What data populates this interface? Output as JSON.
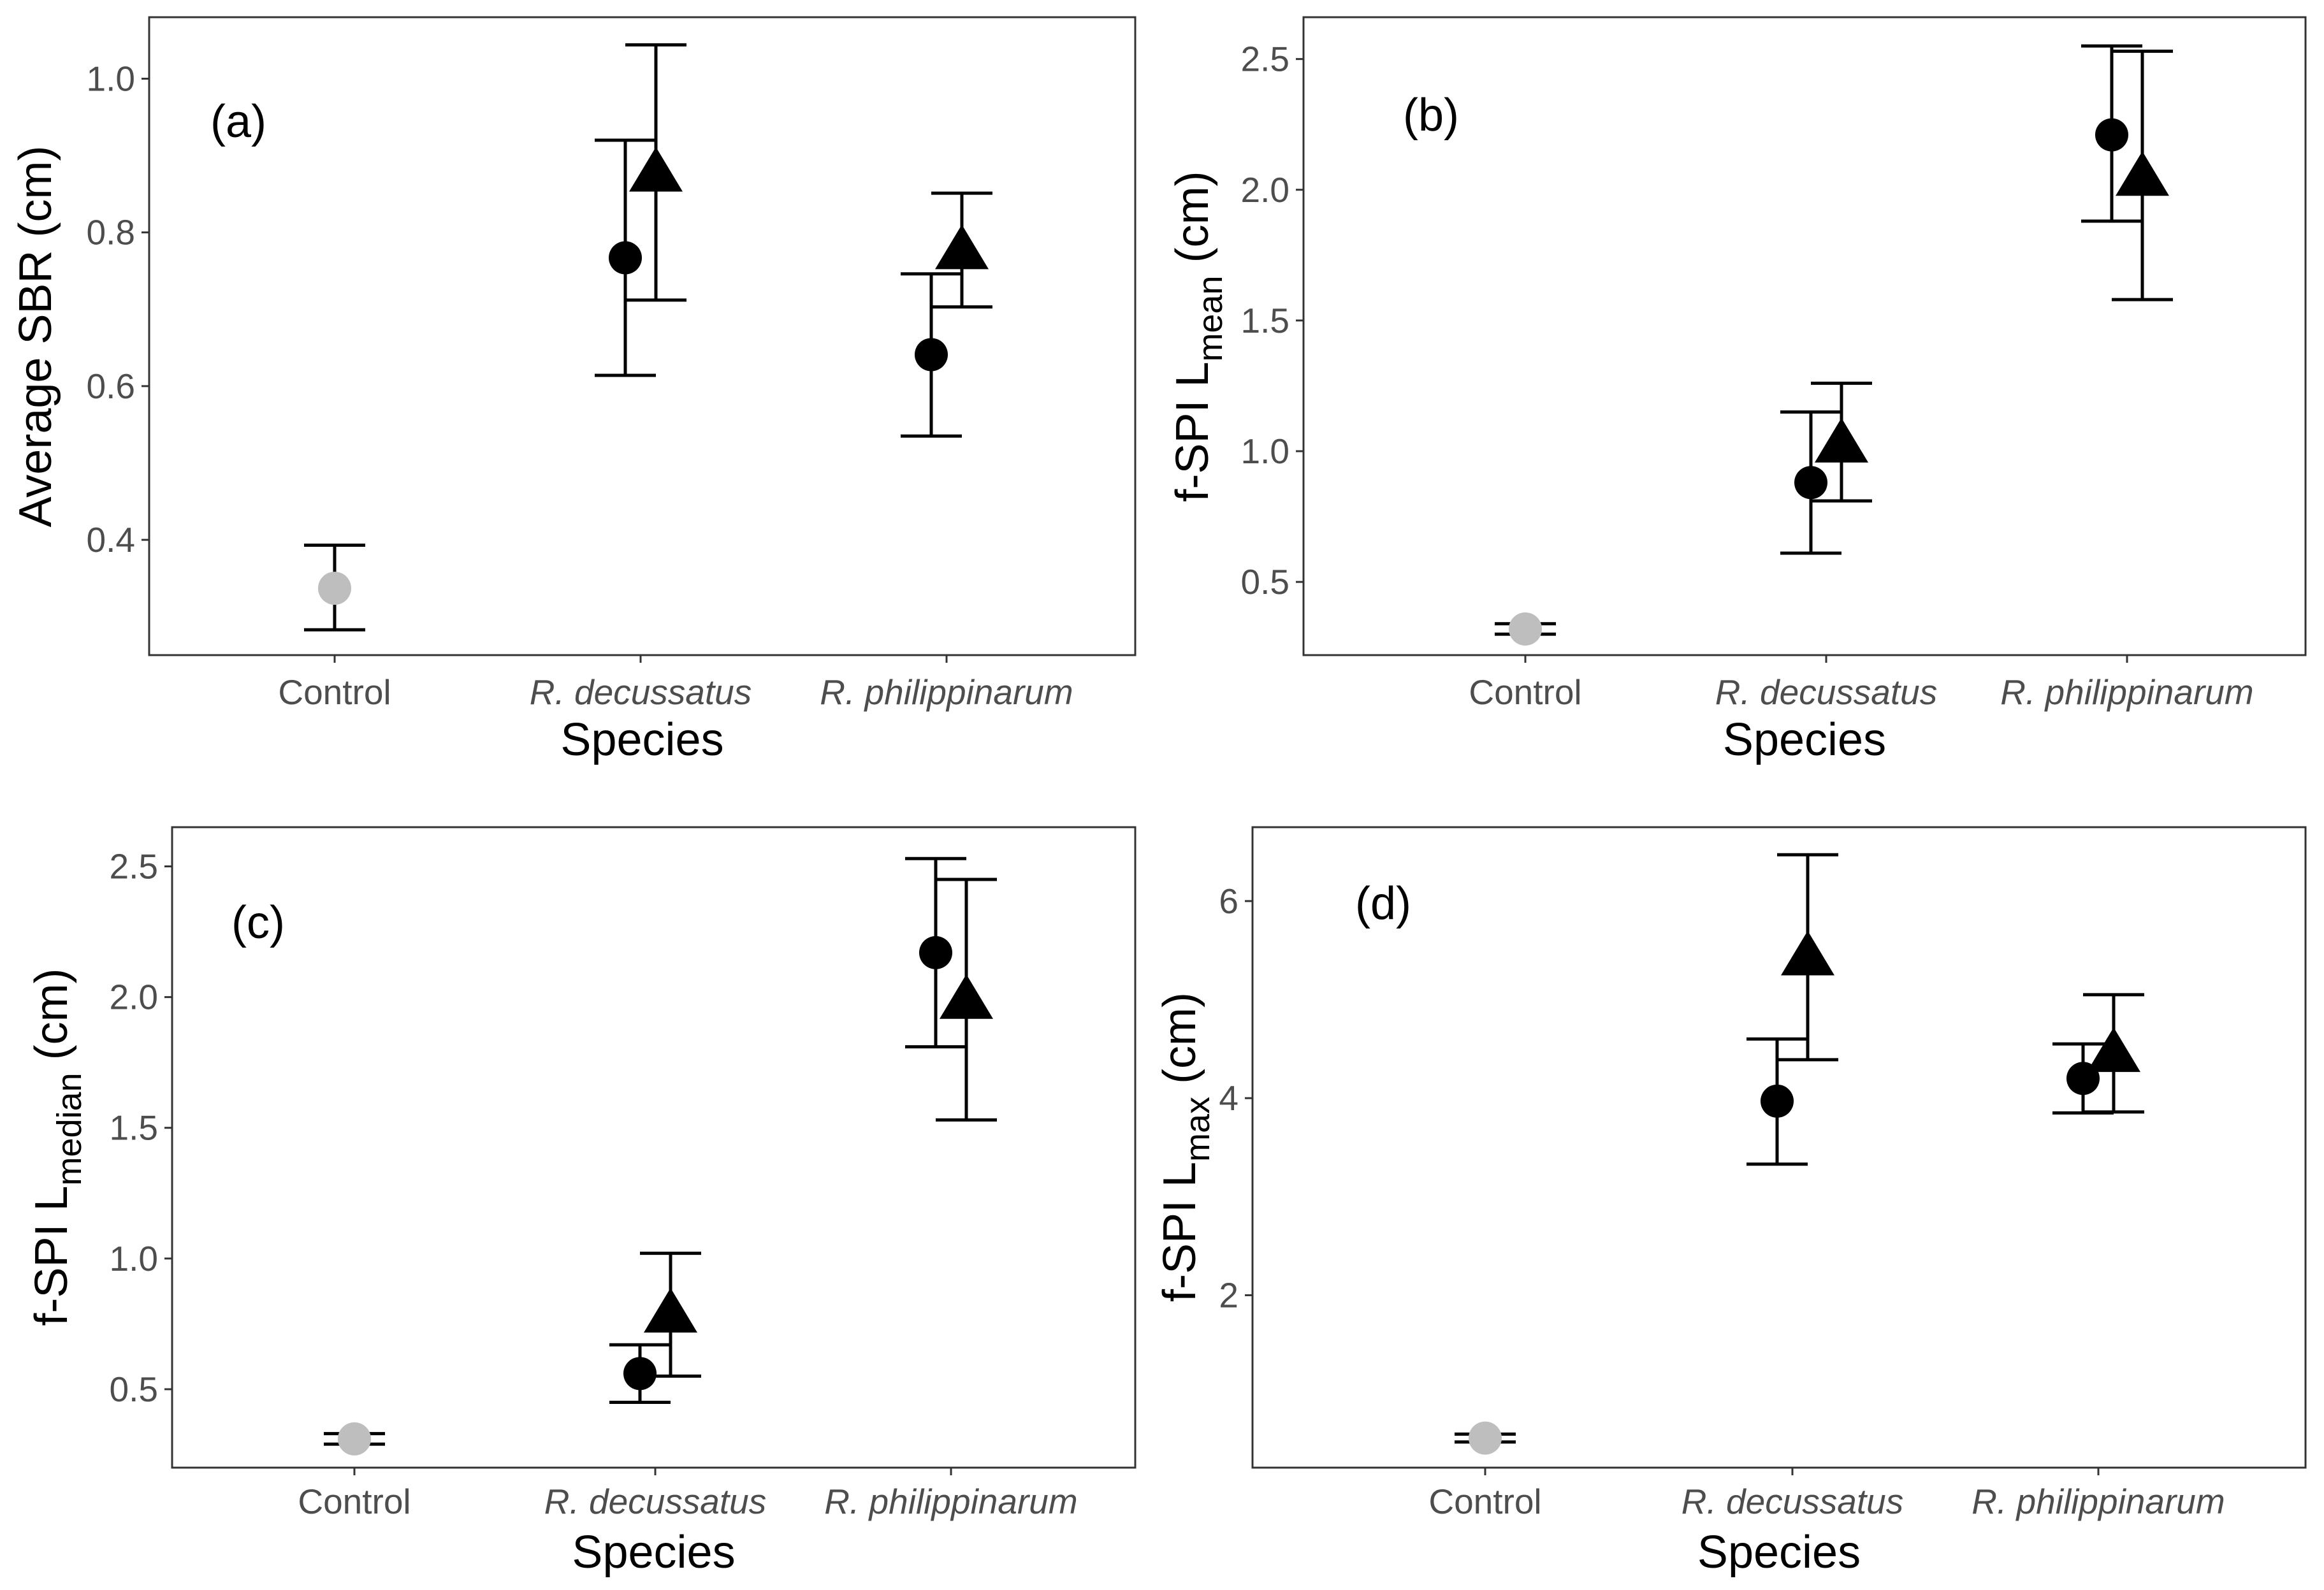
{
  "chart_data": [
    {
      "type": "scatter",
      "panel_label": "(a)",
      "ylabel": "Average SBR (cm)",
      "ylabel_sub": "",
      "xlabel": "Species",
      "categories": [
        "Control",
        "R. decussatus",
        "R. philippinarum"
      ],
      "category_italic": [
        false,
        true,
        true
      ],
      "ylim": [
        0.25,
        1.08
      ],
      "yticks": [
        0.4,
        0.6,
        0.8,
        1.0
      ],
      "ytick_labels": [
        "0.4",
        "0.6",
        "0.8",
        "1.0"
      ],
      "series": [
        {
          "name": "control",
          "marker": "circle",
          "color": "#bebebe",
          "points": [
            {
              "cat": 0,
              "y": 0.337,
              "lo": 0.283,
              "hi": 0.393
            }
          ]
        },
        {
          "name": "circle",
          "marker": "circle",
          "color": "#000000",
          "points": [
            {
              "cat": 1,
              "y": 0.767,
              "lo": 0.614,
              "hi": 0.92
            },
            {
              "cat": 2,
              "y": 0.641,
              "lo": 0.535,
              "hi": 0.746
            }
          ]
        },
        {
          "name": "triangle",
          "marker": "triangle",
          "color": "#000000",
          "points": [
            {
              "cat": 1,
              "y": 0.878,
              "lo": 0.712,
              "hi": 1.044
            },
            {
              "cat": 2,
              "y": 0.777,
              "lo": 0.703,
              "hi": 0.851
            }
          ]
        }
      ]
    },
    {
      "type": "scatter",
      "panel_label": "(b)",
      "ylabel": "f-SPI L",
      "ylabel_sub": "mean",
      "ylabel_suffix": " (cm)",
      "xlabel": "Species",
      "categories": [
        "Control",
        "R. decussatus",
        "R. philippinarum"
      ],
      "category_italic": [
        false,
        true,
        true
      ],
      "ylim": [
        0.22,
        2.66
      ],
      "yticks": [
        0.5,
        1.0,
        1.5,
        2.0,
        2.5
      ],
      "ytick_labels": [
        "0.5",
        "1.0",
        "1.5",
        "2.0",
        "2.5"
      ],
      "series": [
        {
          "name": "control",
          "marker": "circle",
          "color": "#bebebe",
          "points": [
            {
              "cat": 0,
              "y": 0.32,
              "lo": 0.3,
              "hi": 0.34
            }
          ]
        },
        {
          "name": "circle",
          "marker": "circle",
          "color": "#000000",
          "points": [
            {
              "cat": 1,
              "y": 0.88,
              "lo": 0.61,
              "hi": 1.15
            },
            {
              "cat": 2,
              "y": 2.21,
              "lo": 1.88,
              "hi": 2.55
            }
          ]
        },
        {
          "name": "triangle",
          "marker": "triangle",
          "color": "#000000",
          "points": [
            {
              "cat": 1,
              "y": 1.03,
              "lo": 0.81,
              "hi": 1.26
            },
            {
              "cat": 2,
              "y": 2.05,
              "lo": 1.58,
              "hi": 2.53
            }
          ]
        }
      ]
    },
    {
      "type": "scatter",
      "panel_label": "(c)",
      "ylabel": "f-SPI L",
      "ylabel_sub": "median",
      "ylabel_suffix": " (cm)",
      "xlabel": "Species",
      "categories": [
        "Control",
        "R. decussatus",
        "R. philippinarum"
      ],
      "category_italic": [
        false,
        true,
        true
      ],
      "ylim": [
        0.2,
        2.65
      ],
      "yticks": [
        0.5,
        1.0,
        1.5,
        2.0,
        2.5
      ],
      "ytick_labels": [
        "0.5",
        "1.0",
        "1.5",
        "2.0",
        "2.5"
      ],
      "series": [
        {
          "name": "control",
          "marker": "circle",
          "color": "#bebebe",
          "points": [
            {
              "cat": 0,
              "y": 0.31,
              "lo": 0.29,
              "hi": 0.33
            }
          ]
        },
        {
          "name": "circle",
          "marker": "circle",
          "color": "#000000",
          "points": [
            {
              "cat": 1,
              "y": 0.56,
              "lo": 0.45,
              "hi": 0.67
            },
            {
              "cat": 2,
              "y": 2.17,
              "lo": 1.81,
              "hi": 2.53
            }
          ]
        },
        {
          "name": "triangle",
          "marker": "triangle",
          "color": "#000000",
          "points": [
            {
              "cat": 1,
              "y": 0.79,
              "lo": 0.55,
              "hi": 1.02
            },
            {
              "cat": 2,
              "y": 1.99,
              "lo": 1.53,
              "hi": 2.45
            }
          ]
        }
      ]
    },
    {
      "type": "scatter",
      "panel_label": "(d)",
      "ylabel": "f-SPI L",
      "ylabel_sub": "max",
      "ylabel_suffix": " (cm)",
      "xlabel": "Species",
      "categories": [
        "Control",
        "R. decussatus",
        "R. philippinarum"
      ],
      "category_italic": [
        false,
        true,
        true
      ],
      "ylim": [
        0.25,
        6.75
      ],
      "yticks": [
        2,
        4,
        6
      ],
      "ytick_labels": [
        "2",
        "4",
        "6"
      ],
      "series": [
        {
          "name": "control",
          "marker": "circle",
          "color": "#bebebe",
          "points": [
            {
              "cat": 0,
              "y": 0.55,
              "lo": 0.51,
              "hi": 0.59
            }
          ]
        },
        {
          "name": "circle",
          "marker": "circle",
          "color": "#000000",
          "points": [
            {
              "cat": 1,
              "y": 3.97,
              "lo": 3.33,
              "hi": 4.6
            },
            {
              "cat": 2,
              "y": 4.2,
              "lo": 3.85,
              "hi": 4.55
            }
          ]
        },
        {
          "name": "triangle",
          "marker": "triangle",
          "color": "#000000",
          "points": [
            {
              "cat": 1,
              "y": 5.44,
              "lo": 4.39,
              "hi": 6.47
            },
            {
              "cat": 2,
              "y": 4.46,
              "lo": 3.86,
              "hi": 5.05
            }
          ]
        }
      ]
    }
  ]
}
